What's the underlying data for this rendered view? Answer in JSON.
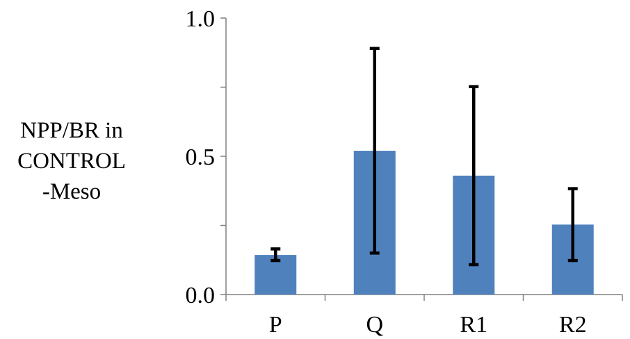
{
  "chart_data": {
    "type": "bar",
    "ylabel_lines": [
      "NPP/BR in",
      "CONTROL",
      "-Meso"
    ],
    "categories": [
      "P",
      "Q",
      "R1",
      "R2"
    ],
    "series": [
      {
        "values": [
          0.143,
          0.52,
          0.43,
          0.253
        ],
        "error_low": [
          0.123,
          0.15,
          0.108,
          0.123
        ],
        "error_high": [
          0.165,
          0.89,
          0.752,
          0.383
        ]
      }
    ],
    "ylim": [
      0,
      1.0
    ],
    "yticks": [
      {
        "value": 0.0,
        "label": "0.0"
      },
      {
        "value": 0.5,
        "label": "0.5"
      },
      {
        "value": 1.0,
        "label": "1.0"
      }
    ],
    "minor_yticks": [
      0.25,
      0.75
    ],
    "grid": false,
    "bar_color": "#4f81bd",
    "error_bar_color": "#000000",
    "axis_color": "#808080"
  }
}
